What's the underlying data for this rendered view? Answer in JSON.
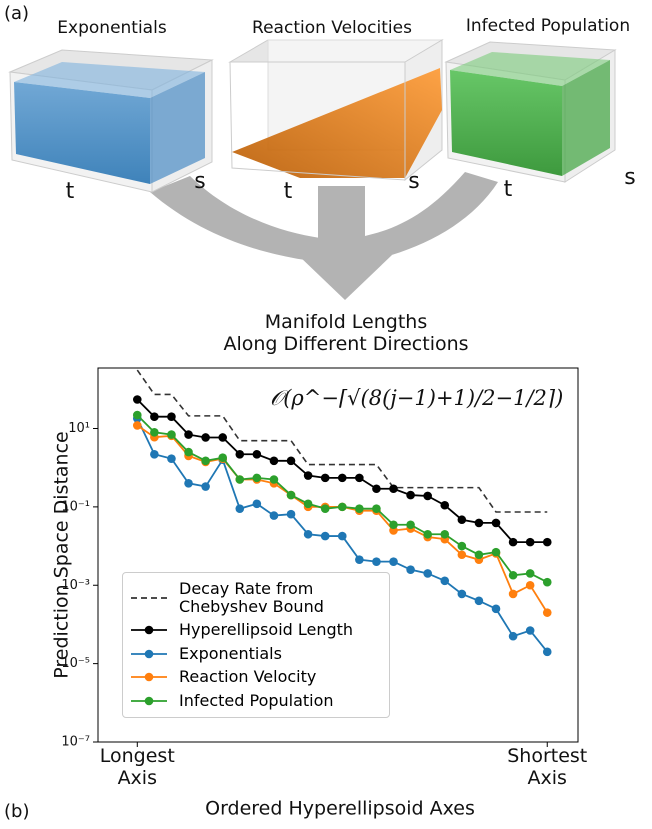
{
  "figure": {
    "panel_a_label": "(a)",
    "panel_b_label": "(b)",
    "panels": [
      {
        "title": "Exponentials",
        "axes": [
          "t",
          "s"
        ]
      },
      {
        "title": "Reaction Velocities",
        "axes": [
          "t",
          "s"
        ]
      },
      {
        "title": "Infected Population",
        "axes": [
          "t",
          "s"
        ]
      }
    ],
    "merge_label": "Manifold Lengths\nAlong Different Directions"
  },
  "chart_data": {
    "type": "line",
    "xlabel": "Ordered Hyperellipsoid Axes",
    "ylabel": "Prediction Space Distance",
    "annotation": "𝒪(ρ^−⌈√(8(j−1)+1)/2−1/2⌉)",
    "yscale": "log",
    "legend": "lower left",
    "x": [
      1,
      2,
      3,
      4,
      5,
      6,
      7,
      8,
      9,
      10,
      11,
      12,
      13,
      14,
      15,
      16,
      17,
      18,
      19,
      20,
      21,
      22,
      23,
      24,
      25
    ],
    "xlim": [
      -1.3,
      26.8
    ],
    "xticks": [
      {
        "value": 1,
        "label": "Longest\nAxis"
      },
      {
        "value": 25,
        "label": "Shortest\nAxis"
      }
    ],
    "ylim": [
      1e-07,
      350
    ],
    "yticks": [
      {
        "value": 10,
        "label": "10¹"
      },
      {
        "value": 0.1,
        "label": "10⁻¹"
      },
      {
        "value": 0.001,
        "label": "10⁻³"
      },
      {
        "value": 1e-05,
        "label": "10⁻⁵"
      },
      {
        "value": 1e-07,
        "label": "10⁻⁷"
      }
    ],
    "series": [
      {
        "name": "Decay Rate from\nChebyshev Bound",
        "color": "#333333",
        "linestyle": "dashed",
        "marker": false,
        "values": [
          310,
          74,
          74,
          21,
          21,
          21,
          4.9,
          4.9,
          4.9,
          4.9,
          1.2,
          1.2,
          1.2,
          1.2,
          1.2,
          0.31,
          0.31,
          0.31,
          0.31,
          0.31,
          0.31,
          0.074,
          0.074,
          0.074,
          0.074
        ]
      },
      {
        "name": "Hyperellipsoid Length",
        "color": "#000000",
        "linestyle": "solid",
        "marker": true,
        "values": [
          55,
          20,
          20,
          7,
          5.9,
          5.9,
          2.2,
          2.2,
          1.5,
          1.5,
          0.63,
          0.55,
          0.55,
          0.55,
          0.29,
          0.29,
          0.2,
          0.19,
          0.11,
          0.047,
          0.039,
          0.039,
          0.0126,
          0.0126,
          0.0126
        ]
      },
      {
        "name": "Exponentials",
        "color": "#1f77b4",
        "linestyle": "solid",
        "marker": true,
        "values": [
          18,
          2.2,
          1.7,
          0.4,
          0.33,
          1.6,
          0.09,
          0.12,
          0.06,
          0.065,
          0.02,
          0.018,
          0.018,
          0.0045,
          0.004,
          0.004,
          0.0025,
          0.002,
          0.0013,
          0.0006,
          0.0004,
          0.00025,
          5e-05,
          7e-05,
          2e-05
        ]
      },
      {
        "name": "Reaction Velocity",
        "color": "#ff7f0e",
        "linestyle": "solid",
        "marker": true,
        "values": [
          12,
          6,
          6.5,
          2,
          1.4,
          1.7,
          0.5,
          0.5,
          0.4,
          0.2,
          0.1,
          0.1,
          0.1,
          0.08,
          0.08,
          0.025,
          0.028,
          0.017,
          0.015,
          0.006,
          0.0045,
          0.0065,
          0.0006,
          0.001,
          0.0002
        ]
      },
      {
        "name": "Infected Population",
        "color": "#2ca02c",
        "linestyle": "solid",
        "marker": true,
        "values": [
          22,
          8,
          7,
          2.5,
          1.5,
          1.8,
          0.5,
          0.55,
          0.5,
          0.2,
          0.12,
          0.09,
          0.1,
          0.09,
          0.09,
          0.035,
          0.035,
          0.02,
          0.02,
          0.01,
          0.006,
          0.007,
          0.0018,
          0.002,
          0.0012
        ]
      }
    ]
  }
}
